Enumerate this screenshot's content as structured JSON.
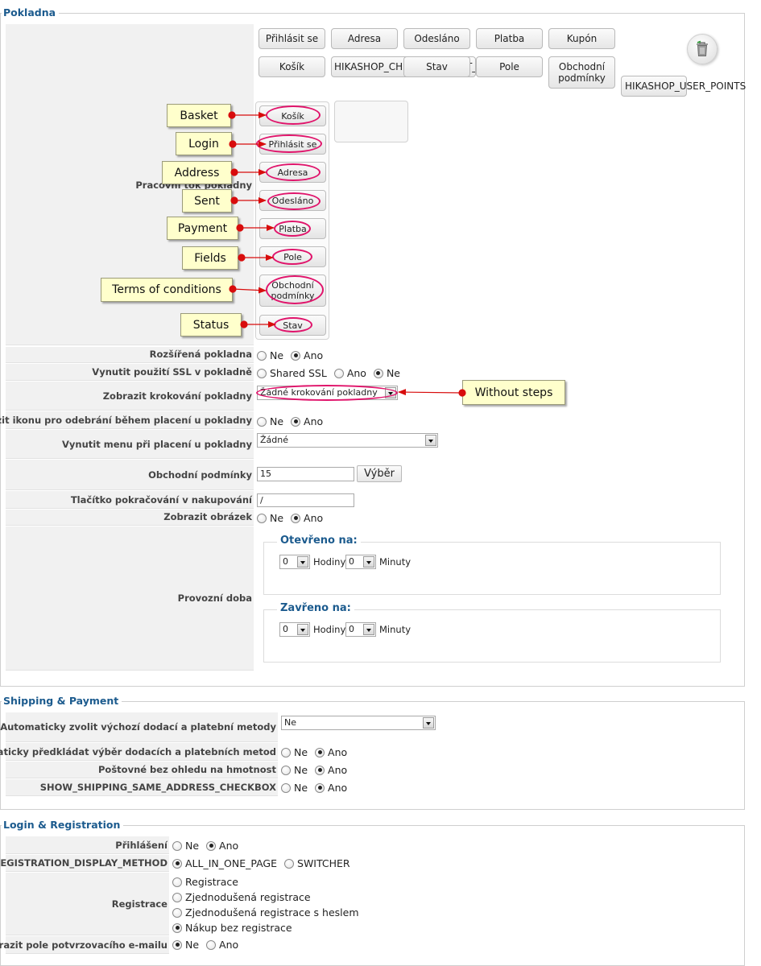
{
  "checkout": {
    "legend": "Pokladna",
    "available_buttons": [
      {
        "label": "Přihlásit se"
      },
      {
        "label": "Adresa"
      },
      {
        "label": "Odesláno"
      },
      {
        "label": "Platba"
      },
      {
        "label": "Kupón"
      },
      {
        "label": "Košík"
      },
      {
        "label": "HIKASHOP_CHECKOUT_CART_STATUS_TEXT"
      },
      {
        "label": "Stav"
      },
      {
        "label": "Pole"
      },
      {
        "label": "Obchodní podmínky"
      }
    ],
    "hikashop_user_points": "HIKASHOP_USER_POINTS",
    "trash_icon": "trash-icon",
    "workflow_label": "Pracovní tok pokladny",
    "workflow_steps": [
      {
        "label": "Košík",
        "callout": "Basket"
      },
      {
        "label": "Přihlásit se",
        "callout": "Login"
      },
      {
        "label": "Adresa",
        "callout": "Address"
      },
      {
        "label": "Odesláno",
        "callout": "Sent"
      },
      {
        "label": "Platba",
        "callout": "Payment"
      },
      {
        "label": "Pole",
        "callout": "Fields"
      },
      {
        "label": "Obchodní podmínky",
        "callout": "Terms of conditions"
      },
      {
        "label": "Stav",
        "callout": "Status"
      }
    ],
    "ne": "Ne",
    "ano": "Ano",
    "extended_checkout": {
      "label": "Rozšířená pokladna",
      "selected": "Ano"
    },
    "force_ssl": {
      "label": "Vynutit použití SSL v pokladně",
      "opt1": "Shared SSL",
      "opt2": "Ano",
      "opt3": "Ne",
      "selected": "Ne"
    },
    "display_steps": {
      "label": "Zobrazit krokování pokladny",
      "value": "Žádné krokování pokladny",
      "callout": "Without steps"
    },
    "delete_icon_option": {
      "label": "Zobrazit ikonu pro odebrání během placení u pokladny",
      "selected": "Ano"
    },
    "force_menu": {
      "label": "Vynutit menu při placení u pokladny",
      "value": "Žádné"
    },
    "terms": {
      "label": "Obchodní podmínky",
      "value": "15",
      "button": "Výběr"
    },
    "continue_button": {
      "label": "Tlačítko pokračování v nakupování",
      "value": "/"
    },
    "show_image": {
      "label": "Zobrazit obrázek",
      "selected": "Ano"
    },
    "opening_hours": {
      "label": "Provozní doba",
      "open_legend": "Otevřeno na:",
      "close_legend": "Zavřeno na:",
      "hours_label": "Hodiny",
      "minutes_label": "Minuty",
      "open_hour": "0",
      "open_minute": "0",
      "close_hour": "0",
      "close_minute": "0"
    }
  },
  "shipping": {
    "legend": "Shipping & Payment",
    "auto_select": {
      "label": "Automaticky zvolit výchozí dodací a platební metody",
      "value": "Ne"
    },
    "auto_submit": {
      "label": "Automaticky předkládat výběr dodacích a platebních metod",
      "selected": "Ano"
    },
    "shipping_no_weight": {
      "label": "Poštovné bez ohledu na hmotnost",
      "selected": "Ano"
    },
    "same_address": {
      "label": "SHOW_SHIPPING_SAME_ADDRESS_CHECKBOX",
      "selected": "Ano"
    }
  },
  "login": {
    "legend": "Login & Registration",
    "login_option": {
      "label": "Přihlášení",
      "selected": "Ano"
    },
    "registration_display": {
      "label": "REGISTRATION_DISPLAY_METHOD",
      "opt1": "ALL_IN_ONE_PAGE",
      "opt2": "SWITCHER",
      "selected": "ALL_IN_ONE_PAGE"
    },
    "registration": {
      "label": "Registrace",
      "options": [
        "Registrace",
        "Zjednodušená registrace",
        "Zjednodušená registrace s heslem",
        "Nákup bez registrace"
      ],
      "selected": "Nákup bez registrace"
    },
    "confirm_email": {
      "label": "Zobrazit pole potvrzovacího e-mailu",
      "selected": "Ne"
    }
  }
}
